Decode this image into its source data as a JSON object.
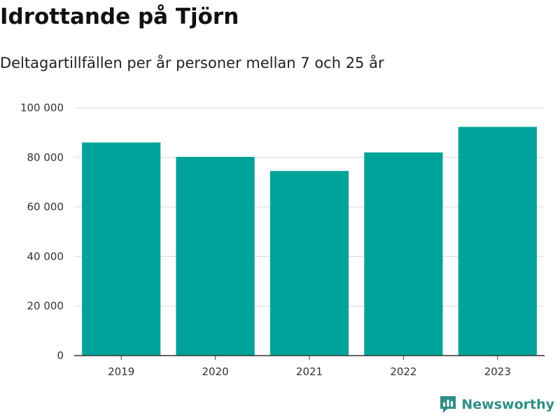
{
  "title": "Idrottande på Tjörn",
  "subtitle": "Deltagartillfällen per år personer mellan 7 och 25 år",
  "brand": {
    "name": "Newsworthy",
    "icon": "newsworthy-logo-icon",
    "color": "#2f8f86"
  },
  "chart_data": {
    "type": "bar",
    "categories": [
      "2019",
      "2020",
      "2021",
      "2022",
      "2023"
    ],
    "values": [
      86000,
      80200,
      74500,
      82000,
      92300
    ],
    "ylim": [
      0,
      100000
    ],
    "yticks": [
      0,
      20000,
      40000,
      60000,
      80000,
      100000
    ],
    "ytick_labels": [
      "0",
      "20 000",
      "40 000",
      "60 000",
      "80 000",
      "100 000"
    ],
    "bar_color": "#00a39a",
    "grid": true
  }
}
